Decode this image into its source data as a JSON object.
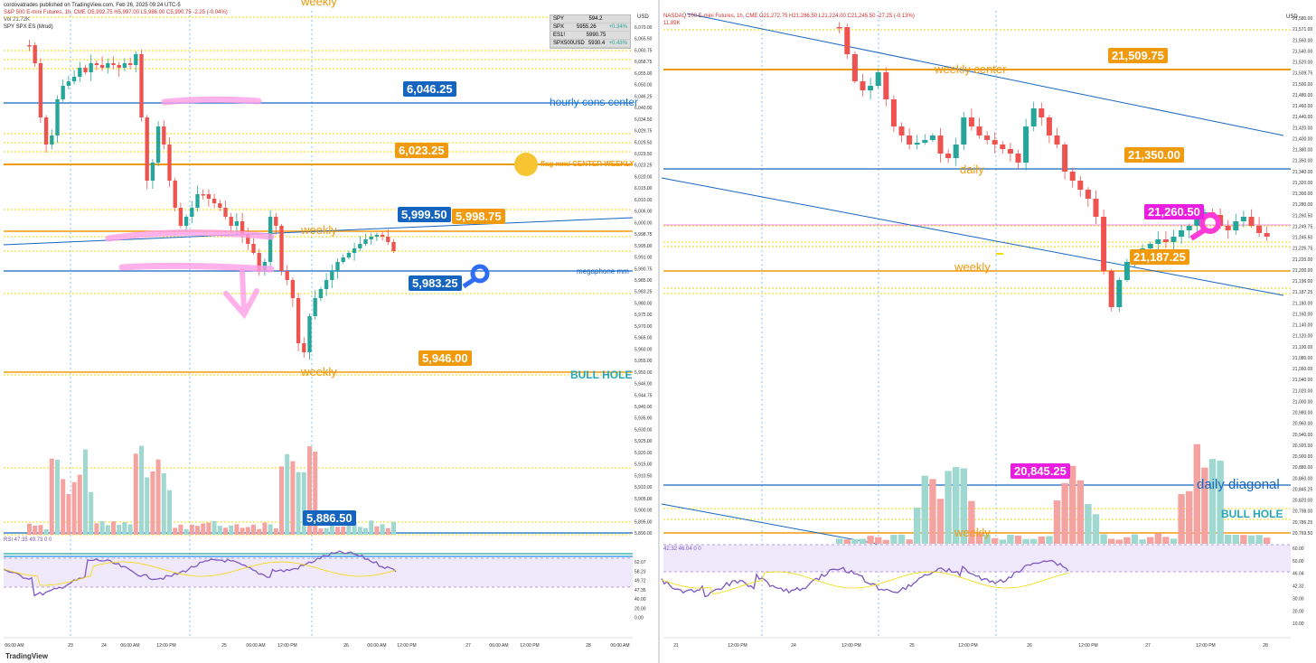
{
  "left": {
    "published": "cordovatrades published on TradingView.com, Feb 26, 2025 09:24 UTC-5",
    "symbol": "S&P 500 E-mini Futures, 1h, CME  O5,992.75  H5,997.00  L5,986.00  C5,990.75  -2.25 (-0.04%)",
    "vol": "Vol  21.72K",
    "overlay": "SPY SPX ES (Mrud)",
    "axis_label": "USD",
    "weekly_top": "weekly",
    "ticker": [
      {
        "sym": "SPY",
        "val": "594.2",
        "chg": ""
      },
      {
        "sym": "SPX",
        "val": "5955.26",
        "chg": "+0.34%"
      },
      {
        "sym": "ES1!",
        "val": "5990.75",
        "chg": ""
      },
      {
        "sym": "SPX500USD",
        "val": "5930.4",
        "chg": "+0.43%"
      }
    ],
    "tags": {
      "t1": "6,046.25",
      "t2": "6,023.25",
      "t3": "5,999.50",
      "t4": "5,998.75",
      "t5": "5,983.25",
      "t6": "5,946.00",
      "t7": "5,886.50"
    },
    "labels": {
      "hourly": "hourly cons center",
      "flag": "flag mm/ CENTER WEEKLY",
      "weekly_mid": "weekly",
      "megaphone": "megaphone mm",
      "weekly_low": "weekly",
      "bull": "BULL HOLE"
    },
    "rsi_label": "RSI  47.35  49.73  0  0",
    "y_ticks": [
      "6,070.00",
      "6,065.50",
      "6,060.75",
      "6,058.75",
      "6,055.00",
      "6,050.00",
      "6,046.25",
      "6,040.00",
      "6,034.50",
      "6,029.75",
      "6,029.50",
      "6,023.50",
      "6,023.25",
      "6,020.00",
      "6,015.00",
      "6,010.00",
      "6,006.00",
      "6,000.00",
      "5,998.75",
      "5,995.00",
      "5,991.00",
      "5,990.75",
      "5,985.00",
      "5,983.25",
      "5,980.00",
      "5,975.00",
      "5,970.00",
      "5,965.00",
      "5,960.00",
      "5,955.00",
      "5,950.00",
      "5,946.00",
      "5,944.75",
      "5,940.00",
      "5,935.00",
      "5,930.00",
      "5,925.00",
      "5,920.00",
      "5,915.00",
      "5,910.50",
      "5,910.00",
      "5,905.00",
      "5,900.00",
      "5,895.00",
      "5,890.00"
    ],
    "rsi_ticks": [
      "62.07",
      "58.23",
      "49.72",
      "47.35",
      "40.00",
      "20.00",
      "0.00"
    ],
    "x_ticks": [
      "06:00 AM",
      "23",
      "24",
      "06:00 AM",
      "12:00 PM",
      "25",
      "06:00 AM",
      "12:00 PM",
      "26",
      "06:00 AM",
      "12:00 PM",
      "27",
      "06:00 AM",
      "12:00 PM",
      "28",
      "06:00 AM"
    ]
  },
  "right": {
    "symbol": "NASDAQ 100 E-mini Futures, 1h, CME  O21,272.75  H21,286.50  L21,224.00  C21,245.50  -27.25 (-0.13%)",
    "vol": "11.89K",
    "axis_label": "USD",
    "tags": {
      "t1": "21,509.75",
      "t2": "21,350.00",
      "t3": "21,260.50",
      "t4": "21,187.25",
      "t5": "20,845.25"
    },
    "labels": {
      "weekly_center": "weekly center",
      "daily": "daily",
      "weekly": "weekly",
      "daily_diagonal": "daily diagonal",
      "bull": "BULL HOLE",
      "weekly_low": "weekly"
    },
    "rsi_label": "42.32  46.04  0  0",
    "y_ticks": [
      "21,580.00",
      "21,571.00",
      "21,560.00",
      "21,540.00",
      "21,520.00",
      "21,509.75",
      "21,500.00",
      "21,480.00",
      "21,460.00",
      "21,440.00",
      "21,420.00",
      "21,400.00",
      "21,380.00",
      "21,350.00",
      "21,340.00",
      "21,320.00",
      "21,300.00",
      "21,280.00",
      "21,260.50",
      "21,249.75",
      "21,245.50",
      "21,226.75",
      "21,220.00",
      "21,200.00",
      "21,196.00",
      "21,187.25",
      "21,180.00",
      "21,160.00",
      "21,140.00",
      "21,120.00",
      "21,100.00",
      "21,080.00",
      "21,060.00",
      "21,040.00",
      "21,020.00",
      "21,000.00",
      "20,980.00",
      "20,960.00",
      "20,940.00",
      "20,920.00",
      "20,900.00",
      "20,880.00",
      "20,860.00",
      "20,845.25",
      "20,820.00",
      "20,798.00",
      "20,786.25",
      "20,769.50"
    ],
    "rsi_ticks": [
      "60.00",
      "50.00",
      "46.04",
      "42.32",
      "30.00",
      "20.00",
      "10.00"
    ],
    "x_ticks": [
      "21",
      "12:00 PM",
      "24",
      "12:00 PM",
      "25",
      "12:00 PM",
      "26",
      "12:00 PM",
      "27",
      "12:00 PM",
      "28"
    ]
  },
  "footer": "TradingView",
  "colors": {
    "up": "#26a69a",
    "down": "#ef5350",
    "blue": "#1565c0",
    "orange": "#f29a0e",
    "pink": "#ff4fc3",
    "yellow": "#f5d800",
    "rsi": "#7e57c2"
  }
}
